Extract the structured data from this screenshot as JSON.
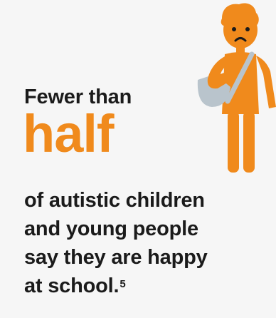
{
  "stat": {
    "lead": "Fewer than",
    "highlight": "half",
    "lines": [
      "of autistic children",
      "and young people",
      "say they are happy"
    ],
    "last_line": "at school.",
    "footnote": "5"
  },
  "illustration": {
    "icon": "sad-child-with-bag-icon"
  },
  "colors": {
    "accent": "#f08a1c",
    "text": "#1b1b1b",
    "background": "#f6f6f6",
    "bag": "#b9c4cc"
  }
}
